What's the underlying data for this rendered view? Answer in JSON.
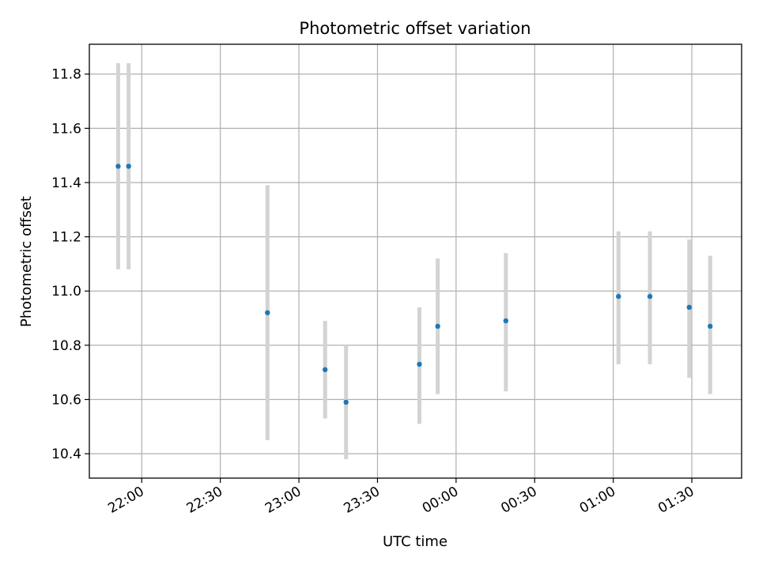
{
  "chart_data": {
    "type": "scatter",
    "title": "Photometric offset variation",
    "xlabel": "UTC time",
    "ylabel": "Photometric offset",
    "x_axis": {
      "kind": "time",
      "range": [
        "21:40",
        "01:49"
      ],
      "ticks": [
        "22:00",
        "22:30",
        "23:00",
        "23:30",
        "00:00",
        "00:30",
        "01:00",
        "01:30"
      ]
    },
    "y_axis": {
      "range": [
        10.31,
        11.91
      ],
      "ticks": [
        "10.4",
        "10.6",
        "10.8",
        "11.0",
        "11.2",
        "11.4",
        "11.6",
        "11.8"
      ]
    },
    "grid": true,
    "series": [
      {
        "marker_color": "#1f77b4",
        "errorbar_color": "#d3d3d3",
        "points": [
          {
            "x": "21:51",
            "y": 11.46,
            "y_low": 11.08,
            "y_high": 11.84
          },
          {
            "x": "21:55",
            "y": 11.46,
            "y_low": 11.08,
            "y_high": 11.84
          },
          {
            "x": "22:48",
            "y": 10.92,
            "y_low": 10.45,
            "y_high": 11.39
          },
          {
            "x": "23:10",
            "y": 10.71,
            "y_low": 10.53,
            "y_high": 10.89
          },
          {
            "x": "23:18",
            "y": 10.59,
            "y_low": 10.38,
            "y_high": 10.8
          },
          {
            "x": "23:46",
            "y": 10.73,
            "y_low": 10.51,
            "y_high": 10.94
          },
          {
            "x": "23:53",
            "y": 10.87,
            "y_low": 10.62,
            "y_high": 11.12
          },
          {
            "x": "00:19",
            "y": 10.89,
            "y_low": 10.63,
            "y_high": 11.14
          },
          {
            "x": "01:02",
            "y": 10.98,
            "y_low": 10.73,
            "y_high": 11.22
          },
          {
            "x": "01:14",
            "y": 10.98,
            "y_low": 10.73,
            "y_high": 11.22
          },
          {
            "x": "01:29",
            "y": 10.94,
            "y_low": 10.68,
            "y_high": 11.19
          },
          {
            "x": "01:37",
            "y": 10.87,
            "y_low": 10.62,
            "y_high": 11.13
          }
        ]
      }
    ]
  }
}
